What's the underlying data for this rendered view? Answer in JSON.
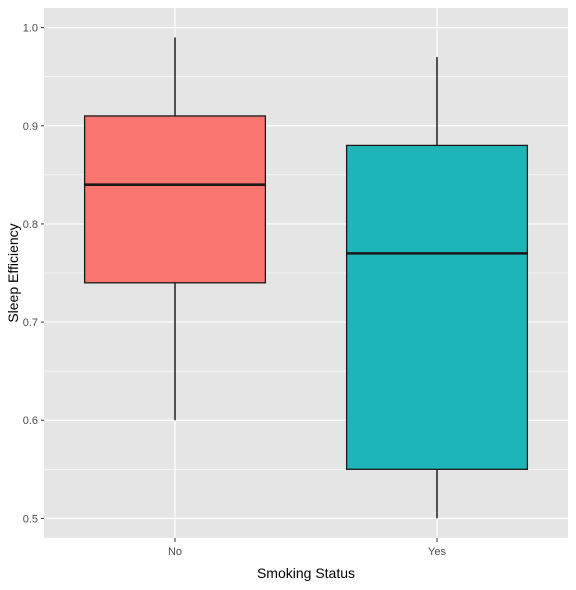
{
  "chart_data": {
    "type": "box",
    "title": "",
    "xlabel": "Smoking Status",
    "ylabel": "Sleep Efficiency",
    "ylim": [
      0.48,
      1.02
    ],
    "y_ticks": [
      0.5,
      0.6,
      0.7,
      0.8,
      0.9,
      1.0
    ],
    "y_tick_labels": [
      "0.5",
      "0.6",
      "0.7",
      "0.8",
      "0.9",
      "1.0"
    ],
    "grid": true,
    "legend": "none",
    "panel_color": "#e5e5e5",
    "grid_color": "#ffffff",
    "categories": [
      "No",
      "Yes"
    ],
    "boxes": [
      {
        "category": "No",
        "whisker_low": 0.6,
        "q1": 0.74,
        "median": 0.84,
        "q3": 0.91,
        "whisker_high": 0.99,
        "color": "#f8766d"
      },
      {
        "category": "Yes",
        "whisker_low": 0.5,
        "q1": 0.55,
        "median": 0.77,
        "q3": 0.88,
        "whisker_high": 0.97,
        "color": "#1eb5b8"
      }
    ]
  }
}
